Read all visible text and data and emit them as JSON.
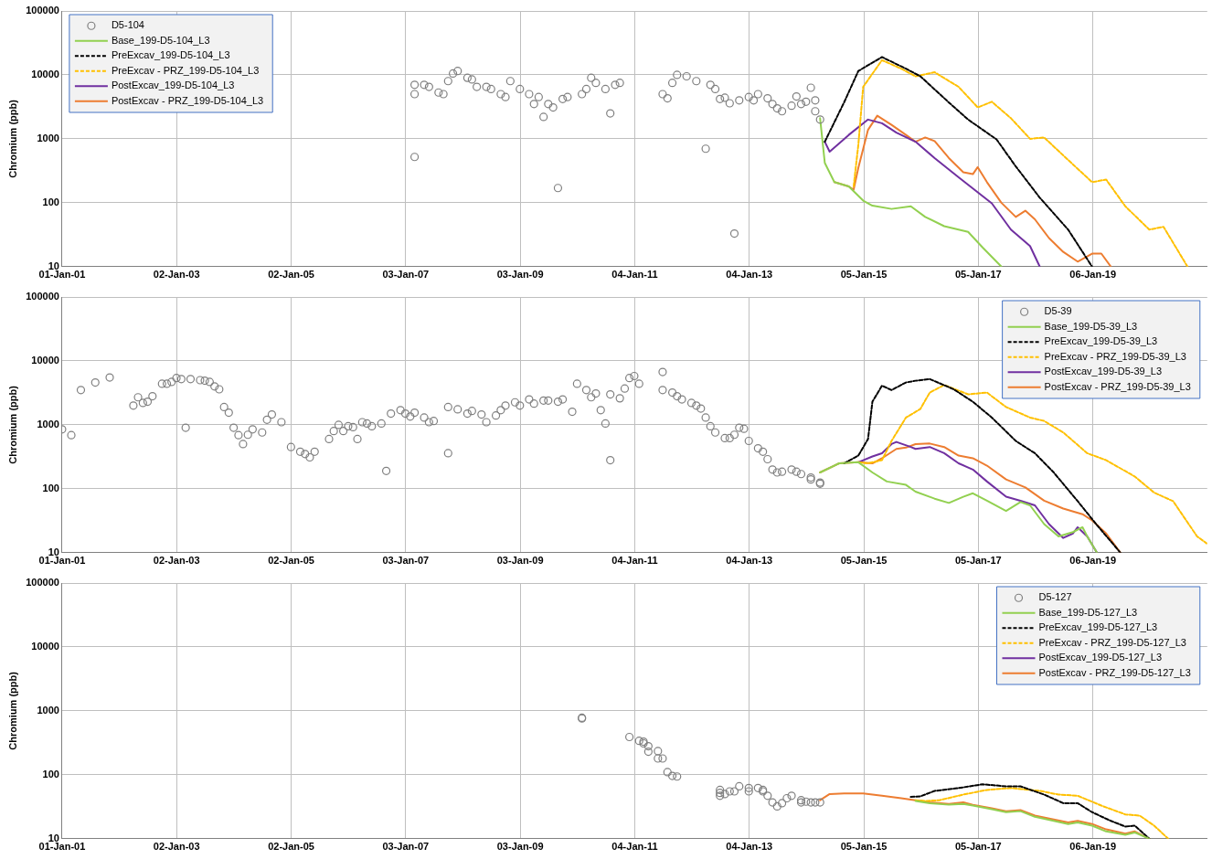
{
  "chart_data": [
    {
      "type": "scatter",
      "ylabel": "Chromium (ppb)",
      "log": "y",
      "grid": true,
      "legend": "top left",
      "xlim": [
        "2001-01-01",
        "2021-01-05"
      ],
      "xticks": [
        {
          "value": "2001-01-01",
          "label": "01-Jan-01"
        },
        {
          "value": "2003-01-02",
          "label": "02-Jan-03"
        },
        {
          "value": "2005-01-02",
          "label": "02-Jan-05"
        },
        {
          "value": "2007-01-03",
          "label": "03-Jan-07"
        },
        {
          "value": "2009-01-03",
          "label": "03-Jan-09"
        },
        {
          "value": "2011-01-04",
          "label": "04-Jan-11"
        },
        {
          "value": "2013-01-04",
          "label": "04-Jan-13"
        },
        {
          "value": "2015-01-05",
          "label": "05-Jan-15"
        },
        {
          "value": "2017-01-05",
          "label": "05-Jan-17"
        },
        {
          "value": "2019-01-06",
          "label": "06-Jan-19"
        }
      ],
      "ylim": [
        10,
        100000
      ],
      "yticks": [
        10,
        100,
        1000,
        10000,
        100000
      ],
      "series": [
        {
          "name": "D5-104",
          "type": "scatter",
          "marker": "circle",
          "color": "#808080",
          "x": [
            "2007-03",
            "2007-03",
            "2007-03",
            "2007-05",
            "2007-06",
            "2007-08",
            "2007-09",
            "2007-10",
            "2007-11",
            "2007-12",
            "2008-02",
            "2008-03",
            "2008-04",
            "2008-06",
            "2008-07",
            "2008-09",
            "2008-10",
            "2008-11",
            "2009-01",
            "2009-03",
            "2009-04",
            "2009-05",
            "2009-06",
            "2009-07",
            "2009-08",
            "2009-09",
            "2009-10",
            "2009-11",
            "2010-02",
            "2010-03",
            "2010-04",
            "2010-05",
            "2010-07",
            "2010-08",
            "2010-09",
            "2010-10",
            "2011-07",
            "2011-08",
            "2011-09",
            "2011-10",
            "2011-12",
            "2012-02",
            "2012-04",
            "2012-05",
            "2012-06",
            "2012-07",
            "2012-08",
            "2012-09",
            "2012-10",
            "2012-11",
            "2013-01",
            "2013-02",
            "2013-03",
            "2013-05",
            "2013-06",
            "2013-07",
            "2013-08",
            "2013-10",
            "2013-11",
            "2013-12",
            "2014-01",
            "2014-02",
            "2014-03",
            "2014-03",
            "2014-04"
          ],
          "values": [
            7000,
            5000,
            520,
            7000,
            6500,
            5300,
            5000,
            8000,
            10500,
            11500,
            9000,
            8500,
            6500,
            6500,
            6000,
            5000,
            4500,
            8000,
            6000,
            5000,
            3500,
            4500,
            2200,
            3500,
            3100,
            170,
            4200,
            4500,
            5000,
            6000,
            9000,
            7500,
            6000,
            2500,
            7000,
            7500,
            5000,
            4300,
            7500,
            10000,
            9500,
            8000,
            700,
            7000,
            6000,
            4200,
            4400,
            3600,
            33,
            4000,
            4500,
            4000,
            5000,
            4300,
            3500,
            3000,
            2700,
            3300,
            4600,
            3500,
            3800,
            6300,
            4000,
            2700,
            2000
          ]
        },
        {
          "name": "Base_199-D5-104_L3",
          "type": "line",
          "marker": "none",
          "line_style": "solid",
          "color": "#92d050",
          "x": [
            "2014-04",
            "2014-05",
            "2014-07",
            "2014-10",
            "2015-01",
            "2015-03",
            "2015-07",
            "2015-11",
            "2016-02",
            "2016-06",
            "2016-11",
            "2017-02",
            "2017-06"
          ],
          "values": [
            2100,
            420,
            210,
            180,
            108,
            90,
            80,
            88,
            60,
            43,
            35,
            20,
            10
          ]
        },
        {
          "name": "PreExcav_199-D5-104_L3",
          "type": "line",
          "marker": "none",
          "line_style": "dashed",
          "color": "#000000",
          "x": [
            "2014-05",
            "2014-09",
            "2014-12",
            "2015-05",
            "2015-10",
            "2016-01",
            "2016-07",
            "2016-11",
            "2017-05",
            "2017-09",
            "2018-02",
            "2018-08",
            "2019-01"
          ],
          "values": [
            900,
            3700,
            11500,
            19000,
            12500,
            9500,
            3700,
            2000,
            980,
            370,
            120,
            38,
            10
          ]
        },
        {
          "name": "PreExcav - PRZ_199-D5-104_L3",
          "type": "line",
          "marker": "none",
          "line_style": "dashed",
          "color": "#ffc000",
          "x": [
            "2014-11",
            "2014-12",
            "2015-01",
            "2015-05",
            "2015-09",
            "2015-12",
            "2016-04",
            "2016-09",
            "2017-01",
            "2017-04",
            "2017-08",
            "2017-12",
            "2018-03",
            "2018-07",
            "2019-01",
            "2019-04",
            "2019-08",
            "2020-01",
            "2020-04",
            "2020-09"
          ],
          "values": [
            180,
            800,
            6500,
            17000,
            12500,
            9500,
            11000,
            6500,
            3100,
            3800,
            2100,
            1000,
            1050,
            550,
            210,
            230,
            88,
            38,
            42,
            10
          ]
        },
        {
          "name": "PostExcav_199-D5-104_L3",
          "type": "line",
          "marker": "none",
          "line_style": "solid",
          "color": "#7030a0",
          "x": [
            "2014-05",
            "2014-06",
            "2014-10",
            "2015-02",
            "2015-05",
            "2015-08",
            "2015-12",
            "2016-04",
            "2016-09",
            "2017-04",
            "2017-08",
            "2017-12",
            "2018-02"
          ],
          "values": [
            900,
            630,
            1150,
            2000,
            1750,
            1250,
            900,
            500,
            250,
            98,
            38,
            21,
            10
          ]
        },
        {
          "name": "PostExcav - PRZ_199-D5-104_L3",
          "type": "line",
          "marker": "none",
          "line_style": "solid",
          "color": "#ed7d31",
          "x": [
            "2014-07",
            "2014-10",
            "2014-11",
            "2014-12",
            "2015-02",
            "2015-04",
            "2015-07",
            "2015-10",
            "2015-12",
            "2016-02",
            "2016-04",
            "2016-07",
            "2016-10",
            "2016-12",
            "2017-01",
            "2017-03",
            "2017-06",
            "2017-09",
            "2017-11",
            "2018-01",
            "2018-04",
            "2018-07",
            "2018-10",
            "2019-01",
            "2019-03",
            "2019-05"
          ],
          "values": [
            210,
            180,
            160,
            350,
            1380,
            2300,
            1650,
            1150,
            900,
            1050,
            920,
            500,
            300,
            280,
            360,
            210,
            100,
            60,
            75,
            55,
            28,
            17,
            12,
            16,
            16,
            10
          ]
        }
      ]
    },
    {
      "type": "scatter",
      "ylabel": "Chromium (ppb)",
      "log": "y",
      "grid": true,
      "legend": "top right",
      "xlim": [
        "2001-01-01",
        "2021-01-05"
      ],
      "xticks": [
        {
          "value": "2001-01-01",
          "label": "01-Jan-01"
        },
        {
          "value": "2003-01-02",
          "label": "02-Jan-03"
        },
        {
          "value": "2005-01-02",
          "label": "02-Jan-05"
        },
        {
          "value": "2007-01-03",
          "label": "03-Jan-07"
        },
        {
          "value": "2009-01-03",
          "label": "03-Jan-09"
        },
        {
          "value": "2011-01-04",
          "label": "04-Jan-11"
        },
        {
          "value": "2013-01-04",
          "label": "04-Jan-13"
        },
        {
          "value": "2015-01-05",
          "label": "05-Jan-15"
        },
        {
          "value": "2017-01-05",
          "label": "05-Jan-17"
        },
        {
          "value": "2019-01-06",
          "label": "06-Jan-19"
        }
      ],
      "ylim": [
        10,
        100000
      ],
      "yticks": [
        10,
        100,
        1000,
        10000,
        100000
      ],
      "series": [
        {
          "name": "D5-39",
          "type": "scatter",
          "marker": "circle",
          "color": "#808080",
          "x": [
            "2001-01",
            "2001-03",
            "2001-05",
            "2001-08",
            "2001-11",
            "2002-04",
            "2002-05",
            "2002-06",
            "2002-07",
            "2002-08",
            "2002-10",
            "2002-11",
            "2002-12",
            "2003-01",
            "2003-02",
            "2003-03",
            "2003-04",
            "2003-06",
            "2003-07",
            "2003-08",
            "2003-09",
            "2003-10",
            "2003-11",
            "2003-12",
            "2004-01",
            "2004-02",
            "2004-03",
            "2004-04",
            "2004-05",
            "2004-07",
            "2004-08",
            "2004-09",
            "2004-11",
            "2005-01",
            "2005-03",
            "2005-04",
            "2005-05",
            "2005-06",
            "2005-09",
            "2005-10",
            "2005-11",
            "2005-12",
            "2006-01",
            "2006-02",
            "2006-03",
            "2006-04",
            "2006-05",
            "2006-06",
            "2006-08",
            "2006-09",
            "2006-10",
            "2006-12",
            "2007-01",
            "2007-02",
            "2007-03",
            "2007-05",
            "2007-06",
            "2007-07",
            "2007-10",
            "2007-10",
            "2007-12",
            "2008-02",
            "2008-03",
            "2008-05",
            "2008-06",
            "2008-08",
            "2008-09",
            "2008-10",
            "2008-12",
            "2009-01",
            "2009-03",
            "2009-04",
            "2009-06",
            "2009-07",
            "2009-09",
            "2009-10",
            "2009-12",
            "2010-01",
            "2010-03",
            "2010-04",
            "2010-05",
            "2010-06",
            "2010-07",
            "2010-08",
            "2010-08",
            "2010-10",
            "2010-11",
            "2010-12",
            "2011-01",
            "2011-02",
            "2011-07",
            "2011-07",
            "2011-09",
            "2011-10",
            "2011-11",
            "2012-01",
            "2012-02",
            "2012-03",
            "2012-04",
            "2012-05",
            "2012-06",
            "2012-08",
            "2012-09",
            "2012-10",
            "2012-11",
            "2012-12",
            "2013-01",
            "2013-03",
            "2013-04",
            "2013-05",
            "2013-06",
            "2013-07",
            "2013-08",
            "2013-10",
            "2013-11",
            "2013-12",
            "2014-02",
            "2014-02",
            "2014-04",
            "2014-04"
          ],
          "values": [
            850,
            690,
            3500,
            4600,
            5500,
            2000,
            2700,
            2200,
            2300,
            2800,
            4400,
            4400,
            4700,
            5400,
            5200,
            900,
            5200,
            5000,
            4900,
            4700,
            4000,
            3600,
            1900,
            1550,
            900,
            690,
            500,
            700,
            850,
            760,
            1200,
            1450,
            1100,
            450,
            380,
            350,
            310,
            380,
            600,
            800,
            1000,
            800,
            950,
            920,
            600,
            1100,
            1050,
            950,
            1050,
            190,
            1500,
            1700,
            1500,
            1350,
            1550,
            1300,
            1100,
            1150,
            360,
            1900,
            1750,
            1500,
            1650,
            1450,
            1100,
            1400,
            1700,
            2000,
            2250,
            2000,
            2500,
            2150,
            2400,
            2400,
            2300,
            2500,
            1600,
            4400,
            3500,
            2700,
            3100,
            1700,
            1050,
            280,
            3000,
            2600,
            3700,
            5400,
            5800,
            4400,
            6700,
            3500,
            3200,
            2800,
            2500,
            2200,
            2000,
            1800,
            1300,
            950,
            760,
            620,
            620,
            700,
            900,
            870,
            560,
            430,
            380,
            290,
            200,
            180,
            185,
            200,
            185,
            170,
            150,
            140,
            120,
            125
          ]
        },
        {
          "name": "Base_199-D5-39_L3",
          "type": "line",
          "marker": "none",
          "line_style": "solid",
          "color": "#92d050",
          "x": [
            "2014-04",
            "2014-08",
            "2014-12",
            "2015-03",
            "2015-06",
            "2015-10",
            "2015-12",
            "2016-04",
            "2016-07",
            "2016-10",
            "2016-12",
            "2017-03",
            "2017-07",
            "2017-10",
            "2017-12",
            "2018-03",
            "2018-06",
            "2018-09",
            "2018-11",
            "2018-12",
            "2019-02"
          ],
          "values": [
            180,
            250,
            260,
            180,
            130,
            115,
            90,
            70,
            60,
            75,
            85,
            65,
            45,
            62,
            55,
            28,
            18,
            21,
            25,
            18,
            10
          ]
        },
        {
          "name": "PreExcav_199-D5-39_L3",
          "type": "line",
          "marker": "none",
          "line_style": "dashed",
          "color": "#000000",
          "x": [
            "2014-09",
            "2014-12",
            "2015-02",
            "2015-03",
            "2015-05",
            "2015-07",
            "2015-10",
            "2015-12",
            "2016-03",
            "2016-08",
            "2016-12",
            "2017-04",
            "2017-09",
            "2018-01",
            "2018-05",
            "2018-10",
            "2019-02",
            "2019-07"
          ],
          "values": [
            250,
            330,
            600,
            2300,
            4100,
            3500,
            4600,
            4900,
            5200,
            3600,
            2300,
            1300,
            560,
            360,
            180,
            64,
            27,
            10
          ]
        },
        {
          "name": "PreExcav - PRZ_199-D5-39_L3",
          "type": "line",
          "marker": "none",
          "line_style": "dashed",
          "color": "#ffc000",
          "x": [
            "2014-12",
            "2015-02",
            "2015-05",
            "2015-07",
            "2015-10",
            "2016-01",
            "2016-03",
            "2016-06",
            "2016-11",
            "2017-03",
            "2017-07",
            "2017-12",
            "2018-03",
            "2018-07",
            "2018-12",
            "2019-04",
            "2019-10",
            "2020-02",
            "2020-06",
            "2020-11",
            "2021-01"
          ],
          "values": [
            260,
            250,
            280,
            560,
            1300,
            1770,
            3200,
            4200,
            3000,
            3200,
            1900,
            1300,
            1150,
            760,
            360,
            280,
            155,
            87,
            64,
            18,
            14
          ]
        },
        {
          "name": "PostExcav_199-D5-39_L3",
          "type": "line",
          "marker": "none",
          "line_style": "solid",
          "color": "#7030a0",
          "x": [
            "2014-12",
            "2015-03",
            "2015-05",
            "2015-07",
            "2015-08",
            "2015-11",
            "2015-12",
            "2016-03",
            "2016-06",
            "2016-09",
            "2016-12",
            "2017-03",
            "2017-07",
            "2017-10",
            "2018-01",
            "2018-04",
            "2018-07",
            "2018-09",
            "2018-10",
            "2018-12",
            "2019-02"
          ],
          "values": [
            260,
            320,
            360,
            500,
            540,
            450,
            420,
            450,
            360,
            250,
            200,
            130,
            75,
            65,
            55,
            28,
            17,
            20,
            25,
            18,
            10
          ]
        },
        {
          "name": "PostExcav - PRZ_199-D5-39_L3",
          "type": "line",
          "marker": "none",
          "line_style": "solid",
          "color": "#ed7d31",
          "x": [
            "2014-04",
            "2014-08",
            "2014-12",
            "2015-03",
            "2015-05",
            "2015-08",
            "2015-10",
            "2015-12",
            "2016-03",
            "2016-06",
            "2016-09",
            "2016-12",
            "2017-03",
            "2017-07",
            "2017-11",
            "2018-03",
            "2018-07",
            "2018-11",
            "2019-01",
            "2019-04",
            "2019-07"
          ],
          "values": [
            180,
            250,
            260,
            250,
            300,
            420,
            440,
            500,
            510,
            450,
            330,
            300,
            230,
            140,
            105,
            65,
            49,
            40,
            32,
            20,
            10
          ]
        }
      ]
    },
    {
      "type": "scatter",
      "ylabel": "Chromium (ppb)",
      "log": "y",
      "grid": true,
      "legend": "top right",
      "xlim": [
        "2001-01-01",
        "2021-01-05"
      ],
      "xticks": [
        {
          "value": "2001-01-01",
          "label": "01-Jan-01"
        },
        {
          "value": "2003-01-02",
          "label": "02-Jan-03"
        },
        {
          "value": "2005-01-02",
          "label": "02-Jan-05"
        },
        {
          "value": "2007-01-03",
          "label": "03-Jan-07"
        },
        {
          "value": "2009-01-03",
          "label": "03-Jan-09"
        },
        {
          "value": "2011-01-04",
          "label": "04-Jan-11"
        },
        {
          "value": "2013-01-04",
          "label": "04-Jan-13"
        },
        {
          "value": "2015-01-05",
          "label": "05-Jan-15"
        },
        {
          "value": "2017-01-05",
          "label": "05-Jan-17"
        },
        {
          "value": "2019-01-06",
          "label": "06-Jan-19"
        }
      ],
      "ylim": [
        10,
        100000
      ],
      "yticks": [
        10,
        100,
        1000,
        10000,
        100000
      ],
      "series": [
        {
          "name": "D5-127",
          "type": "scatter",
          "marker": "circle",
          "color": "#808080",
          "x": [
            "2010-02",
            "2010-02",
            "2010-12",
            "2011-02",
            "2011-03",
            "2011-03",
            "2011-04",
            "2011-04",
            "2011-06",
            "2011-06",
            "2011-07",
            "2011-08",
            "2011-09",
            "2011-10",
            "2012-07",
            "2012-07",
            "2012-07",
            "2012-08",
            "2012-09",
            "2012-10",
            "2012-11",
            "2013-01",
            "2013-01",
            "2013-03",
            "2013-04",
            "2013-04",
            "2013-05",
            "2013-06",
            "2013-07",
            "2013-08",
            "2013-09",
            "2013-10",
            "2013-12",
            "2013-12",
            "2014-01",
            "2014-02",
            "2014-03",
            "2014-04"
          ],
          "values": [
            780,
            760,
            390,
            340,
            310,
            330,
            280,
            230,
            235,
            180,
            180,
            110,
            96,
            94,
            58,
            52,
            47,
            50,
            55,
            55,
            66,
            62,
            55,
            62,
            58,
            55,
            47,
            37,
            32,
            36,
            43,
            47,
            40,
            37,
            38,
            37,
            37,
            37
          ]
        },
        {
          "name": "Base_199-D5-127_L3",
          "type": "line",
          "marker": "none",
          "line_style": "solid",
          "color": "#92d050",
          "x": [
            "2015-12",
            "2016-03",
            "2016-07",
            "2016-10",
            "2016-12",
            "2017-04",
            "2017-07",
            "2017-10",
            "2018-01",
            "2018-05",
            "2018-08",
            "2018-10",
            "2019-01",
            "2019-04",
            "2019-08",
            "2019-10",
            "2020-01"
          ],
          "values": [
            39,
            36,
            34,
            35,
            33,
            29,
            26,
            27,
            22,
            19,
            17,
            18,
            16,
            13,
            11.5,
            12.5,
            10
          ]
        },
        {
          "name": "PreExcav_199-D5-127_L3",
          "type": "line",
          "marker": "none",
          "line_style": "dashed",
          "color": "#000000",
          "x": [
            "2015-11",
            "2016-01",
            "2016-04",
            "2016-09",
            "2017-02",
            "2017-07",
            "2017-10",
            "2018-03",
            "2018-07",
            "2018-10",
            "2019-01",
            "2019-05",
            "2019-08",
            "2019-10",
            "2020-01"
          ],
          "values": [
            45,
            46,
            56,
            62,
            71,
            66,
            66,
            49,
            36,
            36,
            26,
            19,
            15.5,
            16,
            10
          ]
        },
        {
          "name": "PreExcav - PRZ_199-D5-127_L3",
          "type": "line",
          "marker": "none",
          "line_style": "dashed",
          "color": "#ffc000",
          "x": [
            "2015-12",
            "2016-02",
            "2016-05",
            "2016-10",
            "2017-03",
            "2017-08",
            "2018-02",
            "2018-06",
            "2018-10",
            "2019-03",
            "2019-08",
            "2019-11",
            "2020-02",
            "2020-05"
          ],
          "values": [
            40,
            39,
            40,
            49,
            58,
            62,
            56,
            49,
            47,
            33,
            24,
            23,
            16,
            10
          ]
        },
        {
          "name": "PostExcav_199-D5-127_L3",
          "type": "line",
          "marker": "none",
          "line_style": "solid",
          "color": "#7030a0"
        },
        {
          "name": "PostExcav - PRZ_199-D5-127_L3",
          "type": "line",
          "marker": "none",
          "line_style": "solid",
          "color": "#ed7d31",
          "x": [
            "2014-04",
            "2014-06",
            "2014-09",
            "2015-01",
            "2015-05",
            "2015-09",
            "2015-12",
            "2016-03",
            "2016-07",
            "2016-10",
            "2016-12",
            "2017-04",
            "2017-07",
            "2017-10",
            "2018-01",
            "2018-05",
            "2018-08",
            "2018-10",
            "2019-01",
            "2019-04",
            "2019-08",
            "2019-10",
            "2020-01"
          ],
          "values": [
            40,
            50,
            51,
            51,
            47,
            43,
            40,
            37,
            35,
            37,
            34,
            30,
            27,
            28,
            23,
            20,
            18,
            19,
            17,
            14,
            12,
            13,
            10
          ]
        }
      ]
    }
  ]
}
